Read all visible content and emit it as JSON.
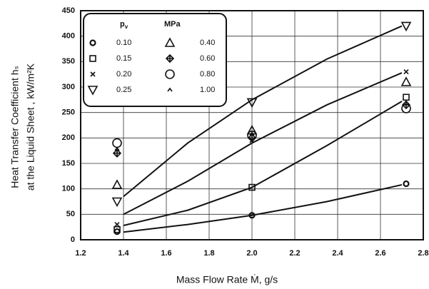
{
  "chart_data": {
    "type": "scatter",
    "xlabel": "Mass Flow Rate Ṁ, g/s",
    "ylabel": [
      "Heat Transfer Coefficient hₛ",
      "at the Liquid Sheet , kW/m²K"
    ],
    "xlim": [
      1.2,
      2.8
    ],
    "xticks": [
      1.2,
      1.4,
      1.6,
      1.8,
      {
        "value": 2,
        "label": "2.0"
      },
      2.2,
      2.4,
      2.6,
      2.8
    ],
    "ylim": [
      0,
      450
    ],
    "yticks": [
      0,
      50,
      100,
      150,
      200,
      250,
      300,
      350,
      400,
      450
    ],
    "legend_title": {
      "symbol": "p",
      "subscript": "v",
      "unit": "MPa"
    },
    "series": [
      {
        "name": "0.10",
        "marker": "circle",
        "color": "#111",
        "x": [
          1.37,
          2.0,
          2.72
        ],
        "values": [
          16,
          48,
          110
        ]
      },
      {
        "name": "0.15",
        "marker": "square",
        "color": "#111",
        "x": [
          1.37,
          2.0,
          2.72
        ],
        "values": [
          20,
          103,
          280
        ]
      },
      {
        "name": "0.20",
        "marker": "cross",
        "color": "#111",
        "x": [
          1.37,
          2.0,
          2.72
        ],
        "values": [
          30,
          195,
          330
        ]
      },
      {
        "name": "0.25",
        "marker": "triangle-down",
        "color": "#111",
        "x": [
          1.37,
          2.0,
          2.72
        ],
        "values": [
          75,
          270,
          420
        ]
      },
      {
        "name": "0.40",
        "marker": "triangle-up",
        "color": "#111",
        "x": [
          1.37,
          2.0,
          2.72
        ],
        "values": [
          108,
          215,
          310
        ]
      },
      {
        "name": "0.60",
        "marker": "diamond",
        "color": "#111",
        "x": [
          1.37,
          2.0,
          2.72
        ],
        "values": [
          170,
          200,
          265
        ]
      },
      {
        "name": "0.80",
        "marker": "circle-large",
        "color": "#111",
        "x": [
          1.37,
          2.0,
          2.72
        ],
        "values": [
          190,
          205,
          258
        ]
      },
      {
        "name": "1.00",
        "marker": "caret",
        "color": "#111",
        "x": [
          1.37,
          2.0,
          2.72
        ],
        "values": [
          178,
          208,
          270
        ]
      }
    ],
    "curves": [
      {
        "color": "#111",
        "x": [
          1.4,
          1.7,
          2.0,
          2.35,
          2.7
        ],
        "values": [
          15,
          30,
          48,
          75,
          108
        ]
      },
      {
        "color": "#111",
        "x": [
          1.4,
          1.7,
          2.0,
          2.35,
          2.7
        ],
        "values": [
          28,
          58,
          103,
          185,
          272
        ]
      },
      {
        "color": "#111",
        "x": [
          1.4,
          1.7,
          2.0,
          2.35,
          2.7
        ],
        "values": [
          50,
          115,
          190,
          265,
          328
        ]
      },
      {
        "color": "#111",
        "x": [
          1.4,
          1.7,
          2.0,
          2.35,
          2.7
        ],
        "values": [
          85,
          190,
          275,
          355,
          420
        ]
      }
    ]
  }
}
